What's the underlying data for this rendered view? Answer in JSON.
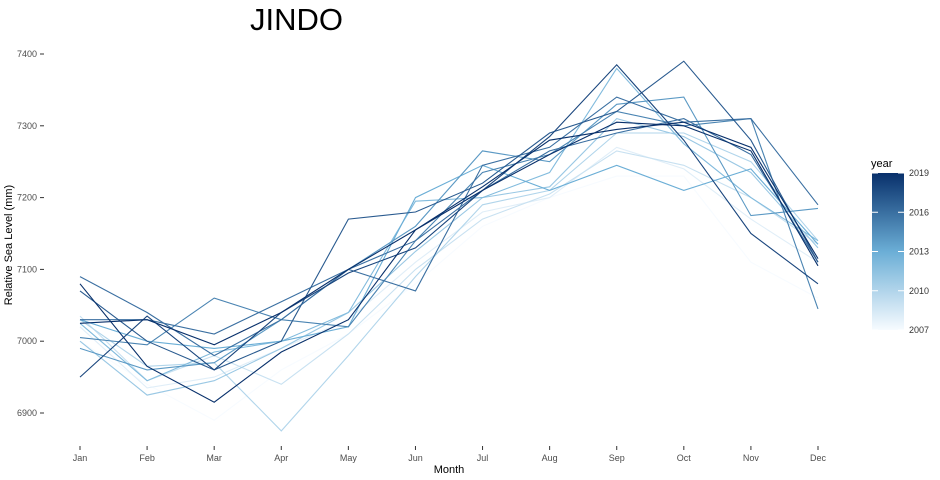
{
  "chart_data": {
    "type": "line",
    "title": "JINDO",
    "xlabel": "Month",
    "ylabel": "Relative Sea Level (mm)",
    "categories": [
      "Jan",
      "Feb",
      "Mar",
      "Apr",
      "May",
      "Jun",
      "Jul",
      "Aug",
      "Sep",
      "Oct",
      "Nov",
      "Dec"
    ],
    "ylim": [
      6860,
      7420
    ],
    "yticks": [
      6900,
      7000,
      7100,
      7200,
      7300,
      7400
    ],
    "grid": false,
    "legend": {
      "title": "year",
      "position": "right",
      "min": 2007,
      "max": 2019,
      "breaks": [
        2007,
        2010,
        2013,
        2016,
        2019
      ],
      "color_low": "#f7fbff",
      "color_high": "#08306b"
    },
    "series": [
      {
        "year": 2007,
        "values": [
          7000,
          6940,
          6890,
          6960,
          7010,
          7080,
          7160,
          7200,
          7230,
          7230,
          7110,
          7060
        ]
      },
      {
        "year": 2008,
        "values": [
          7020,
          6935,
          6950,
          6990,
          7030,
          7110,
          7180,
          7200,
          7270,
          7240,
          7170,
          7110
        ]
      },
      {
        "year": 2009,
        "values": [
          7035,
          6945,
          6980,
          6940,
          7010,
          7100,
          7170,
          7205,
          7265,
          7245,
          7200,
          7135
        ]
      },
      {
        "year": 2010,
        "values": [
          7030,
          6965,
          6970,
          6875,
          6980,
          7090,
          7190,
          7210,
          7290,
          7290,
          7250,
          7140
        ]
      },
      {
        "year": 2011,
        "values": [
          7000,
          6925,
          6945,
          6990,
          7040,
          7125,
          7200,
          7215,
          7310,
          7285,
          7235,
          7130
        ]
      },
      {
        "year": 2012,
        "values": [
          7025,
          6945,
          6985,
          7000,
          7040,
          7195,
          7200,
          7235,
          7380,
          7275,
          7200,
          7140
        ]
      },
      {
        "year": 2013,
        "values": [
          7030,
          7000,
          6990,
          7000,
          7020,
          7200,
          7245,
          7210,
          7245,
          7210,
          7240,
          7135
        ]
      },
      {
        "year": 2014,
        "values": [
          6990,
          6960,
          6970,
          7030,
          7100,
          7160,
          7265,
          7250,
          7330,
          7340,
          7175,
          7185
        ]
      },
      {
        "year": 2015,
        "values": [
          7005,
          6995,
          7060,
          7030,
          7020,
          7140,
          7235,
          7260,
          7320,
          7300,
          7310,
          7045
        ]
      },
      {
        "year": 2016,
        "values": [
          7090,
          7040,
          6980,
          7030,
          7100,
          7070,
          7245,
          7270,
          7340,
          7305,
          7310,
          7190
        ]
      },
      {
        "year": 2017,
        "values": [
          7070,
          7000,
          6960,
          7000,
          7170,
          7180,
          7220,
          7290,
          7320,
          7390,
          7280,
          7110
        ]
      },
      {
        "year": 2018,
        "values": [
          6950,
          7035,
          6960,
          7040,
          7095,
          7130,
          7210,
          7285,
          7385,
          7280,
          7150,
          7080
        ]
      },
      {
        "year": 2019,
        "values": [
          7080,
          6965,
          6915,
          6985,
          7030,
          7155,
          7215,
          7280,
          7295,
          7305,
          7270,
          7115
        ]
      },
      {
        "year": 2016,
        "values": [
          7030,
          7030,
          7010,
          7055,
          7100,
          7140,
          7210,
          7265,
          7290,
          7310,
          7260,
          7110
        ]
      },
      {
        "year": 2019,
        "values": [
          7025,
          7030,
          6995,
          7040,
          7100,
          7155,
          7210,
          7260,
          7305,
          7300,
          7265,
          7105
        ]
      }
    ]
  }
}
